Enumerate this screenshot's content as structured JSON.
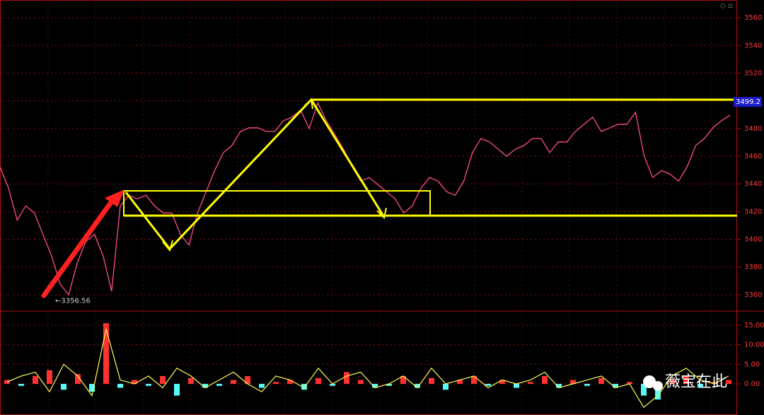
{
  "chart_data": [
    {
      "type": "line",
      "color": "#ff4f8a",
      "grid": true,
      "ylim": [
        3348.2,
        3572.8
      ],
      "yticks": [
        3360,
        3380,
        3400,
        3420,
        3440,
        3460,
        3480,
        3500,
        3520,
        3540,
        3560
      ],
      "values": [
        3452.3,
        3436.9,
        3413.8,
        3424.1,
        3419,
        3403.6,
        3388.2,
        3367.7,
        3360,
        3383.1,
        3398.5,
        3403.6,
        3388.2,
        3362.6,
        3424.1,
        3431.8,
        3429.2,
        3431.8,
        3424.1,
        3419,
        3419,
        3403.6,
        3395.9,
        3419,
        3434.4,
        3449.7,
        3462.6,
        3467.7,
        3477.9,
        3480.5,
        3480.5,
        3477.9,
        3477.9,
        3485.6,
        3488.2,
        3493.3,
        3480,
        3498.5,
        3485.6,
        3475.4,
        3465.1,
        3452.3,
        3442,
        3444.6,
        3439.5,
        3434.4,
        3429.2,
        3419,
        3424.1,
        3436.9,
        3444.6,
        3442,
        3434.4,
        3431.8,
        3442,
        3462.6,
        3472.8,
        3470.3,
        3465.1,
        3460,
        3465.1,
        3467.7,
        3472.8,
        3472.8,
        3462.6,
        3470.3,
        3470.3,
        3477.9,
        3483.1,
        3488.2,
        3477.9,
        3480.5,
        3483.1,
        3483.1,
        3491.8,
        3460,
        3444.6,
        3449.7,
        3447.2,
        3442,
        3452.3,
        3467.7,
        3472.8,
        3480.5,
        3485.6,
        3489.7
      ],
      "annotations": [
        {
          "text": "←3356.56",
          "value": 3356.56
        }
      ],
      "last_price": {
        "text": "3499.2",
        "value": 3499.2
      }
    },
    {
      "type": "oscillator",
      "grid": true,
      "up_color": "#ff3232",
      "down_color": "#54fcfc",
      "line_color": "#ffff54",
      "ylim": [
        -7.95,
        18.6
      ],
      "yticks": [
        {
          "value": 0,
          "label": "0.00"
        },
        {
          "value": 5,
          "label": "5.00"
        },
        {
          "value": 10,
          "label": "10.00"
        },
        {
          "value": 15,
          "label": "15.00"
        }
      ],
      "bars": [
        1,
        -0.5,
        2,
        3.5,
        -1.5,
        2.5,
        -2,
        15.5,
        -1,
        1,
        -0.5,
        2,
        -3,
        1.5,
        -1,
        -0.5,
        1,
        2,
        -1,
        0.5,
        1,
        -1.5,
        1.5,
        -0.5,
        3,
        1,
        -1,
        -0.5,
        2,
        -1,
        1.5,
        -1.5,
        1,
        2,
        -0.5,
        1,
        -1,
        0.5,
        2,
        -1,
        1,
        -0.5,
        1.5,
        -1,
        0.5,
        -3,
        -4,
        1,
        2,
        -1,
        0.5,
        1
      ],
      "line": [
        0.5,
        2,
        3,
        -2,
        5,
        2,
        -3,
        14,
        1,
        0,
        2,
        -1,
        4,
        2,
        -1,
        1,
        3,
        0,
        -2,
        2,
        1,
        -1,
        4,
        0,
        2,
        3,
        -1,
        0,
        2,
        -1,
        4,
        0,
        1,
        2,
        -1,
        1,
        0,
        1,
        3,
        -1,
        0,
        1,
        2,
        -1,
        0,
        -6,
        -3,
        2,
        4,
        1,
        0,
        2
      ]
    }
  ],
  "watermark": "薇宝在此"
}
